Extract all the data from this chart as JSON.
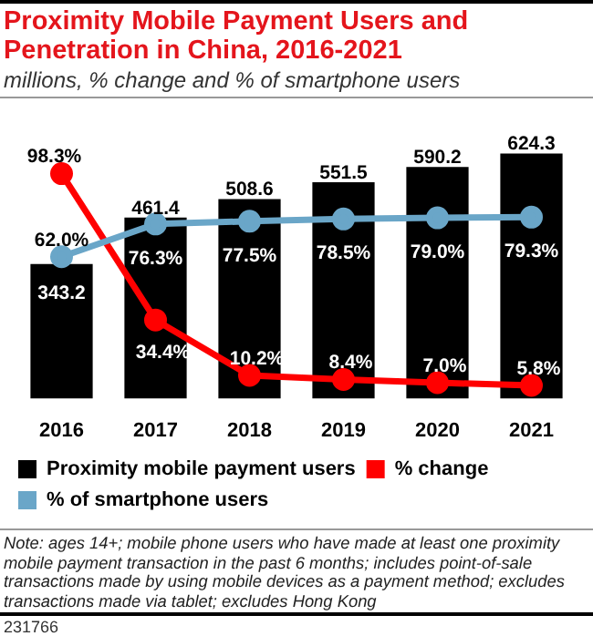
{
  "chart_data": {
    "type": "bar",
    "title": "Proximity Mobile Payment Users and Penetration in China, 2016-2021",
    "subtitle": "millions, % change and % of smartphone users",
    "categories": [
      "2016",
      "2017",
      "2018",
      "2019",
      "2020",
      "2021"
    ],
    "series": [
      {
        "name": "Proximity mobile payment users",
        "color": "#000000",
        "values": [
          343.2,
          461.4,
          508.6,
          551.5,
          590.2,
          624.3
        ],
        "value_labels": [
          "343.2",
          "461.4",
          "508.6",
          "551.5",
          "590.2",
          "624.3"
        ]
      },
      {
        "name": "% change",
        "type": "line",
        "axis": "y2",
        "color": "#ff0000",
        "values": [
          98.3,
          34.4,
          10.2,
          8.4,
          7.0,
          5.8
        ],
        "value_labels": [
          "98.3%",
          "34.4%",
          "10.2%",
          "8.4%",
          "7.0%",
          "5.8%"
        ]
      },
      {
        "name": "% of smartphone users",
        "type": "line",
        "axis": "y2",
        "color": "#6aa6c8",
        "values": [
          62.0,
          76.3,
          77.5,
          78.5,
          79.0,
          79.3
        ],
        "value_labels": [
          "62.0%",
          "76.3%",
          "77.5%",
          "78.5%",
          "79.0%",
          "79.3%"
        ]
      }
    ],
    "tick_labels": "x",
    "grid": false,
    "legend": "bottom",
    "marker": "circle",
    "annotations": [
      "Note: ages 14+; mobile phone users who have made at least one proximity mobile payment transaction in the past 6 months; includes point-of-sale transactions made by using mobile devices as a payment method; excludes transactions made via tablet; excludes Hong Kong",
      "231766"
    ]
  }
}
